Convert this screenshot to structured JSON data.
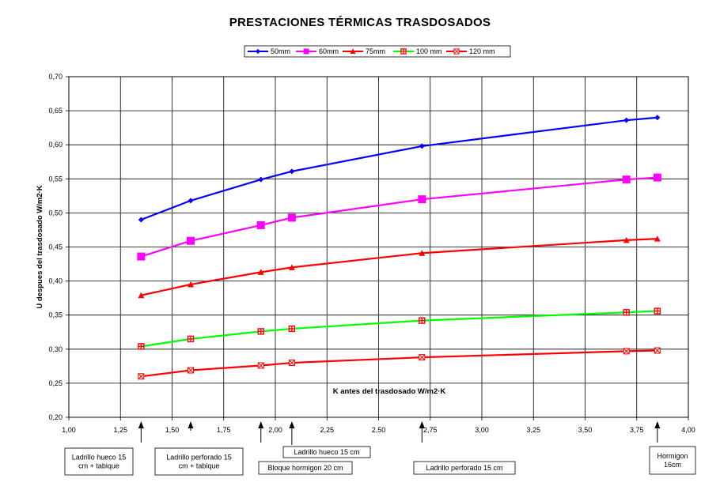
{
  "chart_data": {
    "type": "line",
    "title": "PRESTACIONES TÉRMICAS TRASDOSADOS",
    "xlabel": "K antes del trasdosado W/m2·K",
    "ylabel": "U despues del trasdosado W/m2·K",
    "xlim": [
      1.0,
      4.0
    ],
    "ylim": [
      0.2,
      0.7
    ],
    "x_ticks": [
      "1,00",
      "1,25",
      "1,50",
      "1,75",
      "2,00",
      "2,25",
      "2,50",
      "2,75",
      "3,00",
      "3,25",
      "3,50",
      "3,75",
      "4,00"
    ],
    "y_ticks": [
      "0,20",
      "0,25",
      "0,30",
      "0,35",
      "0,40",
      "0,45",
      "0,50",
      "0,55",
      "0,60",
      "0,65",
      "0,70"
    ],
    "grid": true,
    "legend_position": "top",
    "x": [
      1.35,
      1.59,
      1.93,
      2.08,
      2.71,
      3.7,
      3.85
    ],
    "series": [
      {
        "name": "50mm",
        "color": "#0000ff",
        "marker": "diamond",
        "values": [
          0.49,
          0.518,
          0.549,
          0.561,
          0.598,
          0.636,
          0.64
        ]
      },
      {
        "name": "60mm",
        "color": "#ff00ff",
        "marker": "square",
        "values": [
          0.436,
          0.459,
          0.482,
          0.493,
          0.52,
          0.549,
          0.552
        ]
      },
      {
        "name": "75mm",
        "color": "#ff0000",
        "marker": "triangle",
        "values": [
          0.379,
          0.395,
          0.413,
          0.42,
          0.441,
          0.46,
          0.462
        ]
      },
      {
        "name": "100 mm",
        "color": "#00ff00",
        "marker": "plus-square",
        "marker_color": "#ff0000",
        "values": [
          0.304,
          0.315,
          0.326,
          0.33,
          0.342,
          0.354,
          0.356
        ]
      },
      {
        "name": "120 mm",
        "color": "#ff0000",
        "marker": "cross-square",
        "marker_color": "#ff0000",
        "values": [
          0.26,
          0.269,
          0.276,
          0.28,
          0.288,
          0.297,
          0.298
        ]
      }
    ],
    "annotations": [
      {
        "x": 1.35,
        "lines": [
          "Ladrillo hueco 15",
          "cm + tabique"
        ]
      },
      {
        "x": 1.59,
        "lines": [
          "Ladrillo perforado 15",
          "cm + tabique"
        ]
      },
      {
        "x": 1.93,
        "lines": [
          "Bloque hormigon 20 cm"
        ]
      },
      {
        "x": 2.08,
        "lines": [
          "Ladrillo hueco 15 cm"
        ]
      },
      {
        "x": 2.71,
        "lines": [
          "Ladrillo perforado 15 cm"
        ]
      },
      {
        "x": 3.85,
        "lines": [
          "Hormigon",
          "16cm"
        ]
      }
    ]
  }
}
